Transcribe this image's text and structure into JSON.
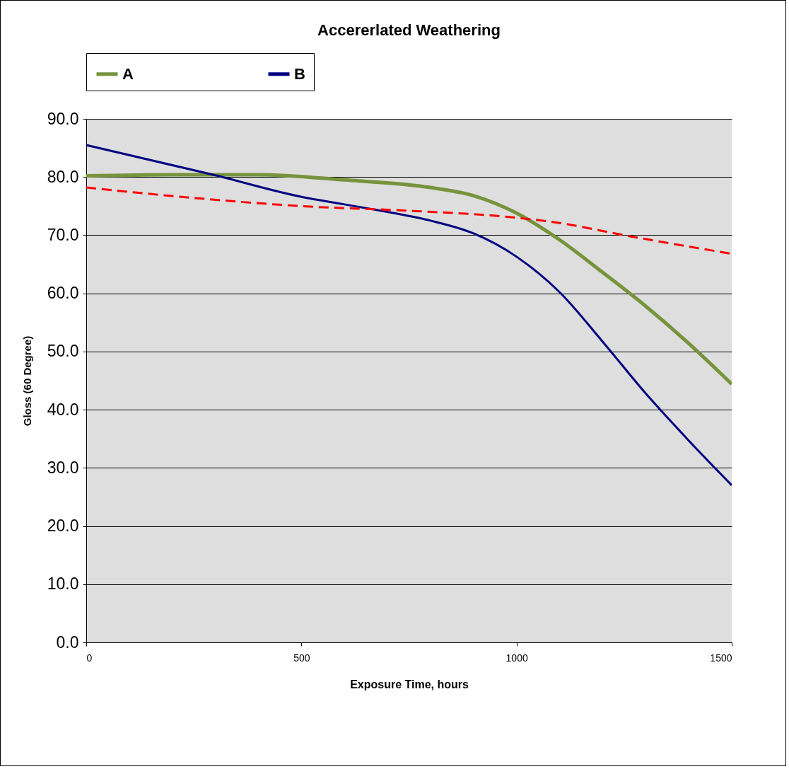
{
  "chart_data": {
    "type": "line",
    "title": "Accererlated Weathering",
    "xlabel": "Exposure Time, hours",
    "ylabel": "Gloss (60 Degree)",
    "xlim": [
      0,
      1500
    ],
    "xticks": [
      0,
      500,
      1000,
      1500
    ],
    "ylim": [
      0,
      90
    ],
    "yticks": [
      {
        "value": 0,
        "label": "0.0"
      },
      {
        "value": 10,
        "label": "10.0"
      },
      {
        "value": 20,
        "label": "20.0"
      },
      {
        "value": 30,
        "label": "30.0"
      },
      {
        "value": 40,
        "label": "40.0"
      },
      {
        "value": 50,
        "label": "50.0"
      },
      {
        "value": 60,
        "label": "60.0"
      },
      {
        "value": 70,
        "label": "70.0"
      },
      {
        "value": 80,
        "label": "80.0"
      },
      {
        "value": 90,
        "label": "90.0"
      }
    ],
    "grid": "y",
    "legend": "top",
    "marker": "none",
    "series": [
      {
        "name": "A",
        "color": "#77933c",
        "line_style": "solid",
        "x": [
          0,
          200,
          400,
          600,
          800,
          900,
          1000,
          1100,
          1200,
          1300,
          1400,
          1500
        ],
        "values": [
          80.2,
          80.4,
          80.4,
          79.5,
          78.2,
          76.8,
          73.8,
          69.2,
          63.6,
          57.8,
          51.4,
          44.4
        ]
      },
      {
        "name": "B",
        "color": "#000080",
        "line_style": "solid",
        "x": [
          0,
          300,
          500,
          600,
          700,
          800,
          900,
          1000,
          1100,
          1200,
          1300,
          1400,
          1500
        ],
        "values": [
          85.5,
          80.3,
          76.6,
          75.3,
          74.0,
          72.5,
          70.3,
          66.3,
          60.2,
          51.7,
          42.8,
          34.7,
          27.0
        ]
      },
      {
        "color": "#ff0000",
        "line_style": "dashed",
        "x": [
          0,
          250,
          500,
          750,
          1000,
          1100,
          1250,
          1500
        ],
        "values": [
          78.2,
          76.4,
          75.0,
          74.2,
          73.0,
          72.1,
          70.0,
          66.8
        ]
      }
    ]
  }
}
